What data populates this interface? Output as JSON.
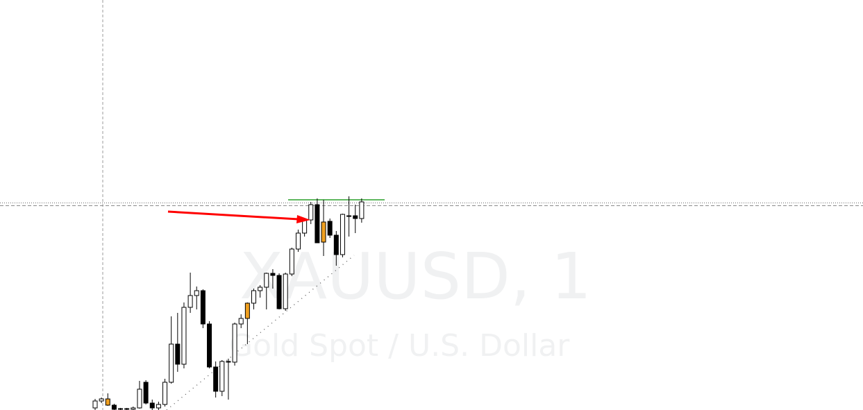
{
  "watermark": {
    "symbol": "XAUUSD, 1",
    "description": "Gold Spot / U.S. Dollar"
  },
  "colors": {
    "background": "#ffffff",
    "bull_body": "#ffffff",
    "bear_body": "#000000",
    "highlight_body": "#f0a020",
    "candle_outline": "#000000",
    "resistance_line": "#2ca02c",
    "arrow": "#ff0000",
    "grid": "#9a9a9a",
    "watermark": "#f0f1f2"
  },
  "chart_data": {
    "type": "candlestick",
    "title": "",
    "xlabel": "",
    "ylabel": "",
    "ylim": [
      0,
      591
    ],
    "grid": false,
    "candles": [
      {
        "o": 3,
        "h": 16,
        "l": 0,
        "c": 13,
        "hl": false
      },
      {
        "o": 13,
        "h": 18,
        "l": 10,
        "c": 16,
        "hl": false
      },
      {
        "o": 16,
        "h": 24,
        "l": 6,
        "c": 7,
        "hl": true
      },
      {
        "o": 7,
        "h": 9,
        "l": 0,
        "c": 1,
        "hl": false
      },
      {
        "o": 1,
        "h": 3,
        "l": 0,
        "c": 2,
        "hl": false
      },
      {
        "o": 2,
        "h": 3,
        "l": 0,
        "c": 1,
        "hl": false
      },
      {
        "o": 1,
        "h": 5,
        "l": 0,
        "c": 3,
        "hl": false
      },
      {
        "o": 3,
        "h": 42,
        "l": 2,
        "c": 30,
        "hl": false
      },
      {
        "o": 40,
        "h": 43,
        "l": 8,
        "c": 10,
        "hl": false
      },
      {
        "o": 10,
        "h": 15,
        "l": 0,
        "c": 3,
        "hl": false
      },
      {
        "o": 3,
        "h": 12,
        "l": 0,
        "c": 8,
        "hl": false
      },
      {
        "o": 8,
        "h": 45,
        "l": 5,
        "c": 40,
        "hl": false
      },
      {
        "o": 40,
        "h": 135,
        "l": 38,
        "c": 95,
        "hl": false
      },
      {
        "o": 95,
        "h": 140,
        "l": 55,
        "c": 66,
        "hl": false
      },
      {
        "o": 66,
        "h": 155,
        "l": 60,
        "c": 148,
        "hl": false
      },
      {
        "o": 148,
        "h": 198,
        "l": 140,
        "c": 165,
        "hl": false
      },
      {
        "o": 165,
        "h": 178,
        "l": 145,
        "c": 172,
        "hl": false
      },
      {
        "o": 172,
        "h": 174,
        "l": 118,
        "c": 124,
        "hl": false
      },
      {
        "o": 124,
        "h": 128,
        "l": 60,
        "c": 62,
        "hl": false
      },
      {
        "o": 62,
        "h": 70,
        "l": 18,
        "c": 27,
        "hl": false
      },
      {
        "o": 27,
        "h": 72,
        "l": 20,
        "c": 70,
        "hl": false
      },
      {
        "o": 70,
        "h": 74,
        "l": 15,
        "c": 69,
        "hl": false
      },
      {
        "o": 69,
        "h": 126,
        "l": 64,
        "c": 124,
        "hl": false
      },
      {
        "o": 124,
        "h": 138,
        "l": 118,
        "c": 132,
        "hl": false
      },
      {
        "o": 132,
        "h": 155,
        "l": 95,
        "c": 154,
        "hl": true
      },
      {
        "o": 154,
        "h": 175,
        "l": 145,
        "c": 172,
        "hl": false
      },
      {
        "o": 172,
        "h": 180,
        "l": 162,
        "c": 177,
        "hl": false
      },
      {
        "o": 177,
        "h": 198,
        "l": 145,
        "c": 197,
        "hl": false
      },
      {
        "o": 197,
        "h": 203,
        "l": 175,
        "c": 194,
        "hl": false
      },
      {
        "o": 194,
        "h": 197,
        "l": 145,
        "c": 146,
        "hl": false
      },
      {
        "o": 146,
        "h": 198,
        "l": 143,
        "c": 196,
        "hl": false
      },
      {
        "o": 196,
        "h": 234,
        "l": 193,
        "c": 232,
        "hl": false
      },
      {
        "o": 232,
        "h": 260,
        "l": 228,
        "c": 255,
        "hl": false
      },
      {
        "o": 255,
        "h": 276,
        "l": 250,
        "c": 274,
        "hl": false
      },
      {
        "o": 274,
        "h": 300,
        "l": 268,
        "c": 296,
        "hl": false
      },
      {
        "o": 296,
        "h": 305,
        "l": 242,
        "c": 241,
        "hl": false
      },
      {
        "o": 271,
        "h": 303,
        "l": 222,
        "c": 242,
        "hl": true
      },
      {
        "o": 272,
        "h": 276,
        "l": 248,
        "c": 252,
        "hl": false
      },
      {
        "o": 252,
        "h": 258,
        "l": 208,
        "c": 224,
        "hl": false
      },
      {
        "o": 224,
        "h": 283,
        "l": 220,
        "c": 282,
        "hl": false
      },
      {
        "o": 279,
        "h": 308,
        "l": 250,
        "c": 280,
        "hl": false
      },
      {
        "o": 280,
        "h": 296,
        "l": 255,
        "c": 276,
        "hl": false
      },
      {
        "o": 276,
        "h": 305,
        "l": 270,
        "c": 300,
        "hl": false
      }
    ],
    "annotations": {
      "resistance_level": 303,
      "arrow_target_candle": 35,
      "trendline": "dotted",
      "horizontal_lines": [
        "dotted",
        "dashed"
      ],
      "vertical_line": "dashed"
    }
  }
}
